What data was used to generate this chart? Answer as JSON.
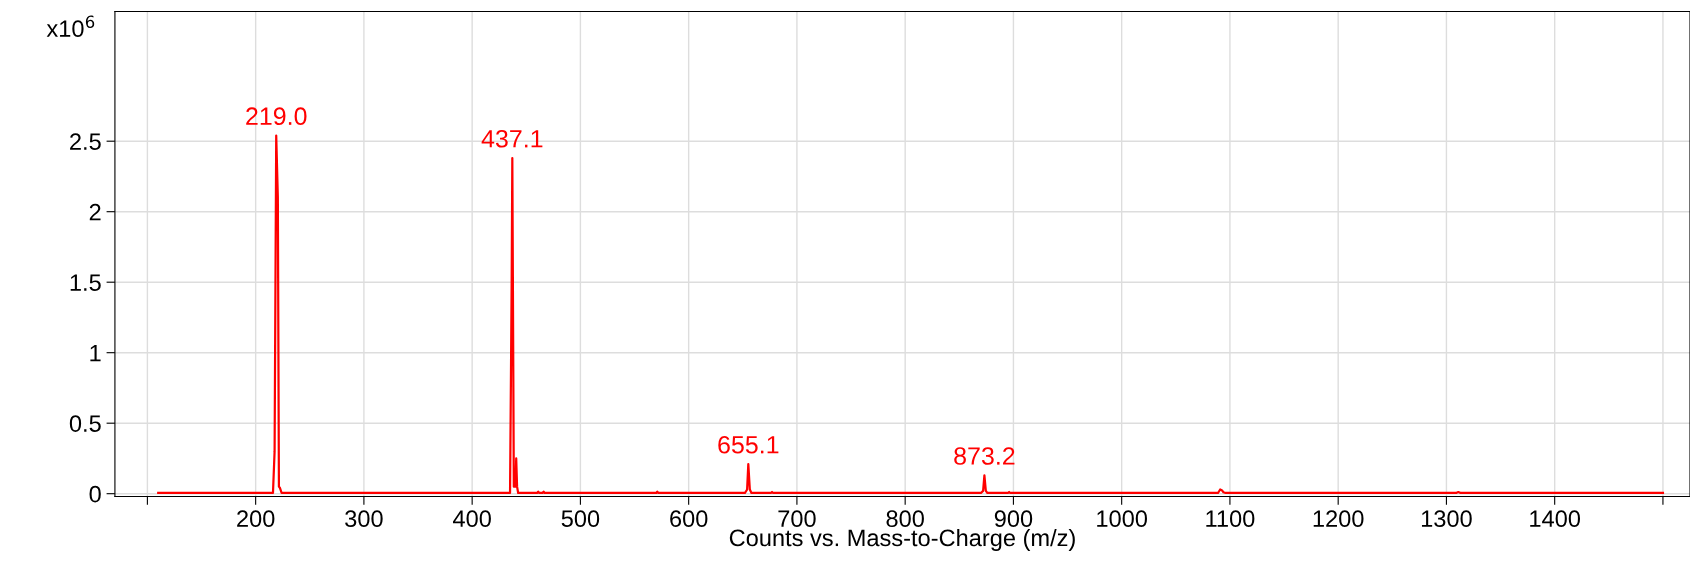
{
  "chart_data": {
    "type": "line",
    "xlabel": "Counts vs. Mass-to-Charge (m/z)",
    "ylabel": "x10$^{6}$",
    "x": [
      110,
      216,
      217.5,
      219.0,
      220.5,
      221.5,
      222.5,
      224,
      226,
      435,
      436.5,
      437.1,
      438.5,
      440,
      440.7,
      441.5,
      442.5,
      445,
      460,
      461,
      462,
      465,
      466,
      467,
      570,
      571,
      572,
      652,
      654,
      655.1,
      656.5,
      658,
      676,
      677,
      678,
      870,
      872,
      873.2,
      874.5,
      876,
      895,
      896,
      897,
      1089,
      1091,
      1092.5,
      1094,
      1096,
      1309,
      1311,
      1313,
      1500
    ],
    "series": [
      {
        "color": "#ff0000",
        "values": [
          0.005,
          0.005,
          0.3,
          2.54,
          2.1,
          0.05,
          0.04,
          0.005,
          0.005,
          0.005,
          1.5,
          2.38,
          0.05,
          0.05,
          0.25,
          0.05,
          0.005,
          0.005,
          0.005,
          0.015,
          0.005,
          0.005,
          0.015,
          0.005,
          0.005,
          0.015,
          0.005,
          0.005,
          0.03,
          0.21,
          0.03,
          0.005,
          0.005,
          0.012,
          0.005,
          0.005,
          0.02,
          0.13,
          0.02,
          0.005,
          0.005,
          0.012,
          0.005,
          0.005,
          0.03,
          0.025,
          0.01,
          0.005,
          0.005,
          0.012,
          0.005,
          0.005
        ]
      }
    ],
    "xlim": [
      70,
      1525
    ],
    "ylim": [
      -0.02,
      3.42
    ],
    "xticks": [
      {
        "value": 100,
        "label": null
      },
      200,
      300,
      400,
      500,
      600,
      700,
      800,
      900,
      1000,
      1100,
      1200,
      1300,
      1400,
      {
        "value": 1500,
        "label": null
      }
    ],
    "yticks": [
      0,
      0.5,
      1,
      1.5,
      2,
      2.5
    ],
    "grid": true,
    "marker": "none",
    "line_style": "solid",
    "annotations": [
      {
        "text": "219.0",
        "x": 219.0,
        "y": 2.54
      },
      {
        "text": "437.1",
        "x": 437.1,
        "y": 2.38
      },
      {
        "text": "655.1",
        "x": 655.1,
        "y": 0.21
      },
      {
        "text": "873.2",
        "x": 873.2,
        "y": 0.13
      }
    ]
  }
}
